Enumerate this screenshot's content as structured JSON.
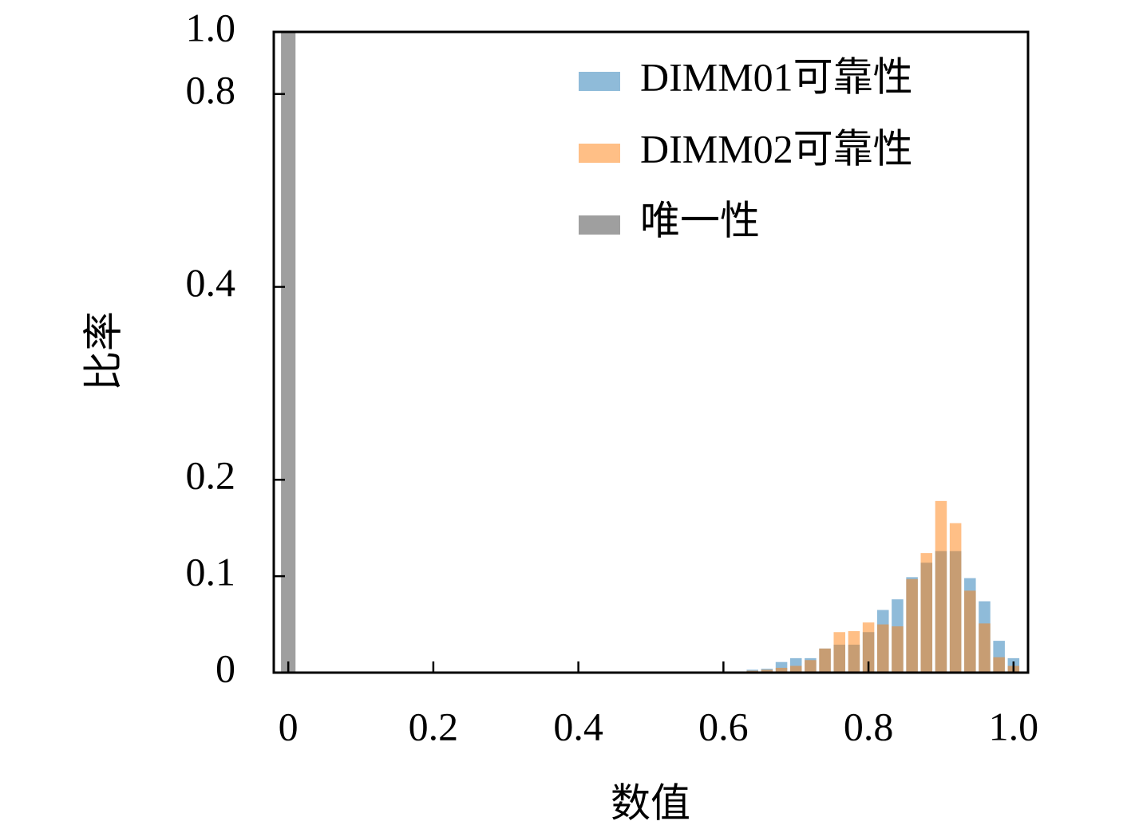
{
  "chart_data": {
    "type": "histogram",
    "xlabel": "数值",
    "ylabel": "比率",
    "xlim": [
      -0.02,
      1.02
    ],
    "ylim": [
      0,
      1
    ],
    "yscale": "symlog",
    "linthresh": 0.2,
    "xticks": [
      0,
      0.2,
      0.4,
      0.6,
      0.8,
      {
        "value": 1,
        "label": "1.0"
      }
    ],
    "yticks": [
      0,
      0.1,
      0.2,
      0.4,
      0.8,
      {
        "value": 1,
        "label": "1.0"
      }
    ],
    "legend": "upper right",
    "series": [
      {
        "name": "DIMM01可靠性",
        "color": "#1f77b4",
        "bins": [
          0.63,
          0.65,
          0.67,
          0.69,
          0.71,
          0.73,
          0.75,
          0.77,
          0.79,
          0.81,
          0.83,
          0.85,
          0.87,
          0.89,
          0.91,
          0.93,
          0.95,
          0.97,
          0.99,
          1.01
        ],
        "values": [
          0.003,
          0.004,
          0.011,
          0.015,
          0.015,
          0.025,
          0.029,
          0.029,
          0.042,
          0.065,
          0.076,
          0.099,
          0.114,
          0.126,
          0.126,
          0.098,
          0.074,
          0.033,
          0.015
        ]
      },
      {
        "name": "DIMM02可靠性",
        "color": "#ff7f0e",
        "bins": [
          0.63,
          0.65,
          0.67,
          0.69,
          0.71,
          0.73,
          0.75,
          0.77,
          0.79,
          0.81,
          0.83,
          0.85,
          0.87,
          0.89,
          0.91,
          0.93,
          0.95,
          0.97,
          0.99,
          1.01
        ],
        "values": [
          0.002,
          0.003,
          0.005,
          0.007,
          0.013,
          0.025,
          0.042,
          0.043,
          0.052,
          0.05,
          0.048,
          0.097,
          0.124,
          0.178,
          0.155,
          0.085,
          0.051,
          0.016,
          0.007
        ]
      },
      {
        "name": "唯一性",
        "color": "#7f7f7f",
        "bins": [
          -0.01,
          0.01
        ],
        "values": [
          1
        ]
      }
    ]
  }
}
